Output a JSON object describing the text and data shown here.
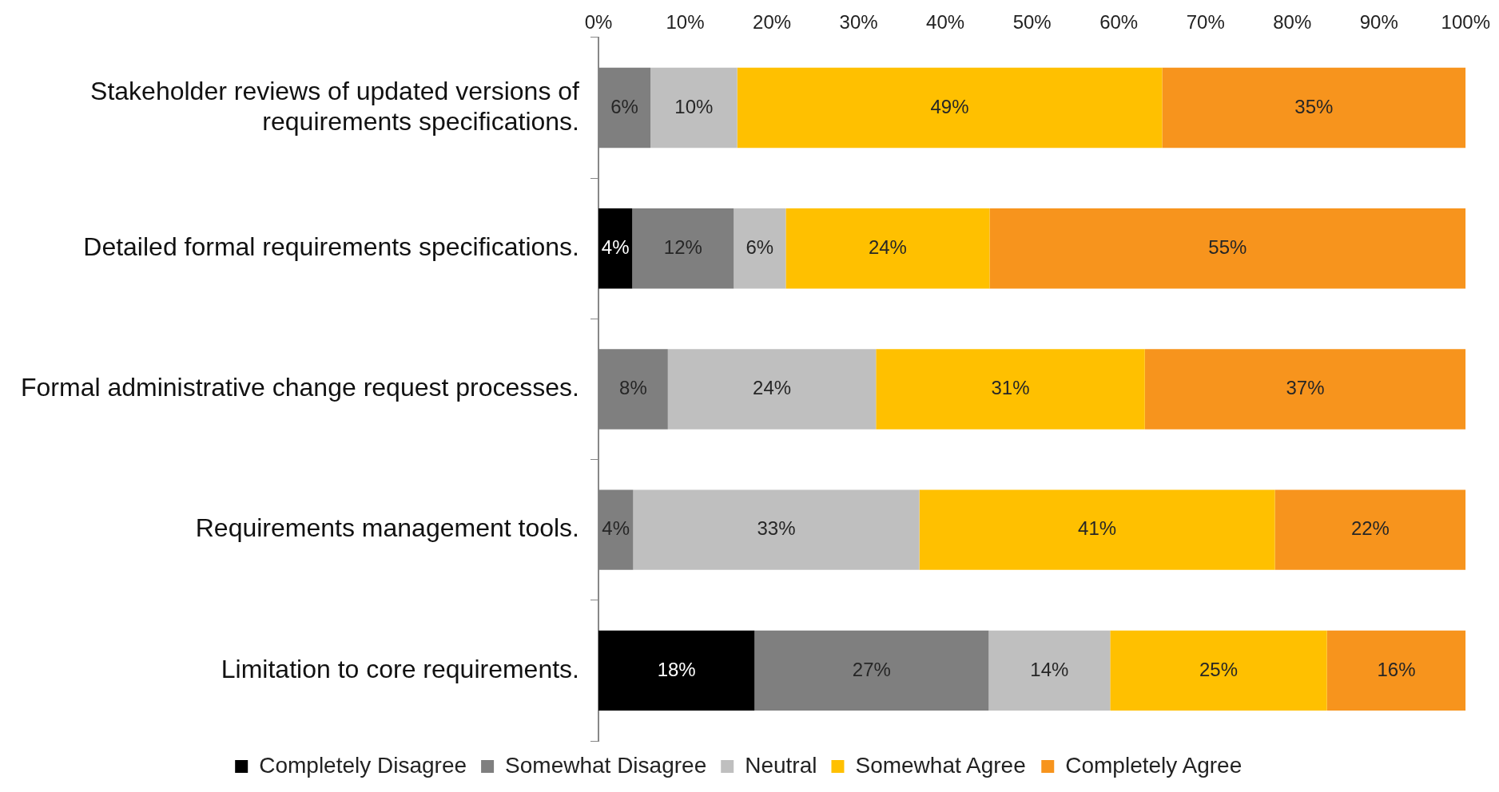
{
  "chart_data": {
    "type": "bar",
    "orientation": "horizontal",
    "stacked": true,
    "categories": [
      "Stakeholder reviews of updated versions of requirements specifications.",
      "Detailed formal requirements specifications.",
      "Formal administrative change request processes.",
      "Requirements management tools.",
      "Limitation to core requirements."
    ],
    "series": [
      {
        "name": "Completely Disagree",
        "color": "#000000",
        "values": [
          null,
          3.9,
          null,
          null,
          18
        ],
        "value_labels": [
          null,
          "4%",
          null,
          null,
          "18%"
        ]
      },
      {
        "name": "Somewhat Disagree",
        "color": "#7f7f7f",
        "values": [
          6,
          11.7,
          8,
          4,
          27
        ],
        "value_labels": [
          "6%",
          "12%",
          "8%",
          "4%",
          "27%"
        ]
      },
      {
        "name": "Neutral",
        "color": "#bfbfbf",
        "values": [
          10,
          6,
          24,
          33,
          14
        ],
        "value_labels": [
          "10%",
          "6%",
          "24%",
          "33%",
          "14%"
        ]
      },
      {
        "name": "Somewhat Agree",
        "color": "#ffc000",
        "values": [
          49,
          23.5,
          31,
          41,
          25
        ],
        "value_labels": [
          "49%",
          "24%",
          "31%",
          "41%",
          "25%"
        ]
      },
      {
        "name": "Completely Agree",
        "color": "#f7941d",
        "values": [
          35,
          54.9,
          37,
          22,
          16
        ],
        "value_labels": [
          "35%",
          "55%",
          "37%",
          "22%",
          "16%"
        ]
      }
    ],
    "xlim": [
      0,
      100
    ],
    "xticks": [
      {
        "value": 0,
        "label": "0%"
      },
      {
        "value": 10,
        "label": "10%"
      },
      {
        "value": 20,
        "label": "20%"
      },
      {
        "value": 30,
        "label": "30%"
      },
      {
        "value": 40,
        "label": "40%"
      },
      {
        "value": 50,
        "label": "50%"
      },
      {
        "value": 60,
        "label": "60%"
      },
      {
        "value": 70,
        "label": "70%"
      },
      {
        "value": 80,
        "label": "80%"
      },
      {
        "value": 90,
        "label": "90%"
      },
      {
        "value": 100,
        "label": "100%"
      }
    ],
    "grid": false,
    "legend": "bottom"
  }
}
